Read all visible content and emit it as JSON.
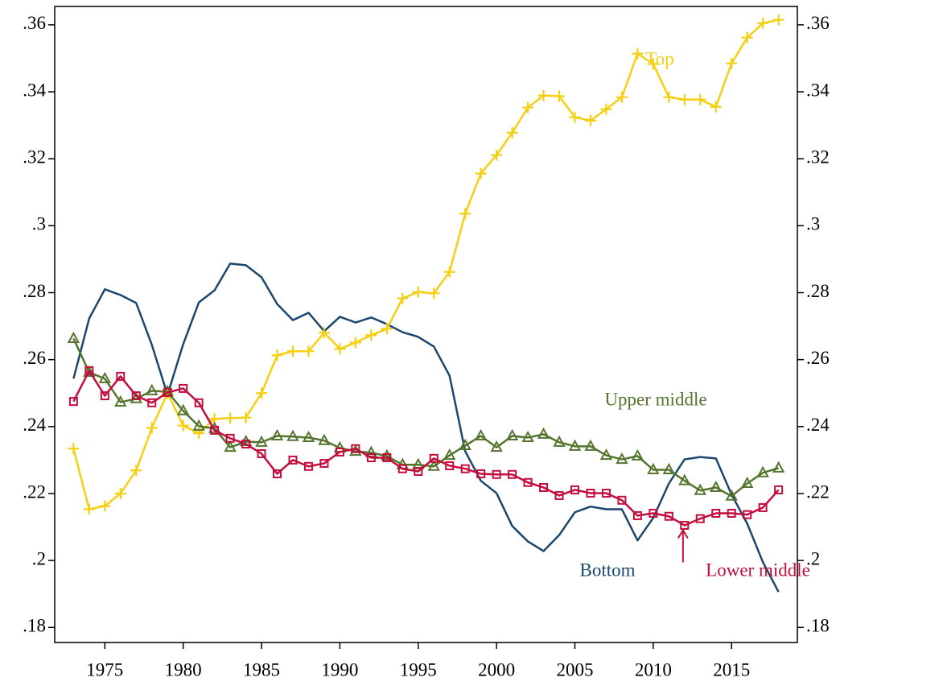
{
  "chart_data": {
    "type": "line",
    "x": [
      1973,
      1974,
      1975,
      1976,
      1977,
      1978,
      1979,
      1980,
      1981,
      1982,
      1983,
      1984,
      1985,
      1986,
      1987,
      1988,
      1989,
      1990,
      1991,
      1992,
      1993,
      1994,
      1995,
      1996,
      1997,
      1998,
      1999,
      2000,
      2001,
      2002,
      2003,
      2004,
      2005,
      2006,
      2007,
      2008,
      2009,
      2010,
      2011,
      2012,
      2013,
      2014,
      2015,
      2016,
      2017,
      2018
    ],
    "xlim": [
      1971.8,
      2019.2
    ],
    "xticks": [
      1975,
      1980,
      1985,
      1990,
      1995,
      2000,
      2005,
      2010,
      2015
    ],
    "ylim": [
      0.1755,
      0.3655
    ],
    "yticks": [
      {
        "value": 0.18,
        "label": ".18"
      },
      {
        "value": 0.2,
        "label": ".2"
      },
      {
        "value": 0.22,
        "label": ".22"
      },
      {
        "value": 0.24,
        "label": ".24"
      },
      {
        "value": 0.26,
        "label": ".26"
      },
      {
        "value": 0.28,
        "label": ".28"
      },
      {
        "value": 0.3,
        "label": ".3"
      },
      {
        "value": 0.32,
        "label": ".32"
      },
      {
        "value": 0.34,
        "label": ".34"
      },
      {
        "value": 0.36,
        "label": ".36"
      }
    ],
    "series": [
      {
        "name": "Bottom",
        "color": "#1a476f",
        "marker": "none",
        "values": [
          0.2543,
          0.2723,
          0.281,
          0.2793,
          0.2769,
          0.2644,
          0.2495,
          0.2646,
          0.2771,
          0.2807,
          0.2887,
          0.2882,
          0.2846,
          0.2766,
          0.2718,
          0.274,
          0.2685,
          0.2728,
          0.2711,
          0.2726,
          0.2706,
          0.2682,
          0.2668,
          0.2639,
          0.2552,
          0.2326,
          0.2238,
          0.2201,
          0.2103,
          0.2057,
          0.2028,
          0.2076,
          0.2144,
          0.2161,
          0.2153,
          0.2153,
          0.206,
          0.2127,
          0.223,
          0.2302,
          0.2309,
          0.2305,
          0.2197,
          0.211,
          0.1995,
          0.1906
        ]
      },
      {
        "name": "Top",
        "color": "#f5cf14",
        "marker": "plus",
        "values": [
          0.2334,
          0.2153,
          0.2163,
          0.22,
          0.2269,
          0.2396,
          0.25,
          0.2403,
          0.238,
          0.2423,
          0.2425,
          0.2427,
          0.25,
          0.2613,
          0.2625,
          0.2625,
          0.268,
          0.2632,
          0.2651,
          0.2673,
          0.2692,
          0.2783,
          0.2802,
          0.2798,
          0.2862,
          0.3036,
          0.3156,
          0.3211,
          0.3278,
          0.3353,
          0.3389,
          0.3387,
          0.3324,
          0.3314,
          0.3348,
          0.3384,
          0.3514,
          0.3483,
          0.3384,
          0.3377,
          0.3377,
          0.3355,
          0.3485,
          0.3562,
          0.3605,
          0.3615
        ]
      },
      {
        "name": "Upper middle",
        "color": "#55752f",
        "marker": "triangle",
        "values": [
          0.2663,
          0.2562,
          0.2543,
          0.2473,
          0.2483,
          0.2507,
          0.2504,
          0.2447,
          0.2401,
          0.2394,
          0.2338,
          0.2355,
          0.2353,
          0.2372,
          0.237,
          0.2367,
          0.2358,
          0.2336,
          0.2326,
          0.2322,
          0.2312,
          0.2286,
          0.2286,
          0.2281,
          0.2314,
          0.2343,
          0.2372,
          0.2338,
          0.2372,
          0.2367,
          0.2377,
          0.2353,
          0.2341,
          0.2341,
          0.2314,
          0.2302,
          0.2312,
          0.2271,
          0.2271,
          0.2238,
          0.2209,
          0.2218,
          0.2192,
          0.223,
          0.2262,
          0.2276
        ]
      },
      {
        "name": "Lower middle",
        "color": "#c40d3c",
        "marker": "square",
        "values": [
          0.2475,
          0.2567,
          0.2492,
          0.255,
          0.2492,
          0.2471,
          0.2502,
          0.2514,
          0.2471,
          0.2389,
          0.2365,
          0.2348,
          0.2319,
          0.2259,
          0.23,
          0.2281,
          0.229,
          0.2324,
          0.2334,
          0.2307,
          0.2307,
          0.2274,
          0.2266,
          0.2305,
          0.2283,
          0.2274,
          0.2259,
          0.2257,
          0.2257,
          0.2233,
          0.2218,
          0.2194,
          0.2211,
          0.2201,
          0.2201,
          0.218,
          0.2134,
          0.2141,
          0.2132,
          0.2105,
          0.2125,
          0.2141,
          0.2141,
          0.2137,
          0.2158,
          0.2211
        ]
      }
    ]
  }
}
